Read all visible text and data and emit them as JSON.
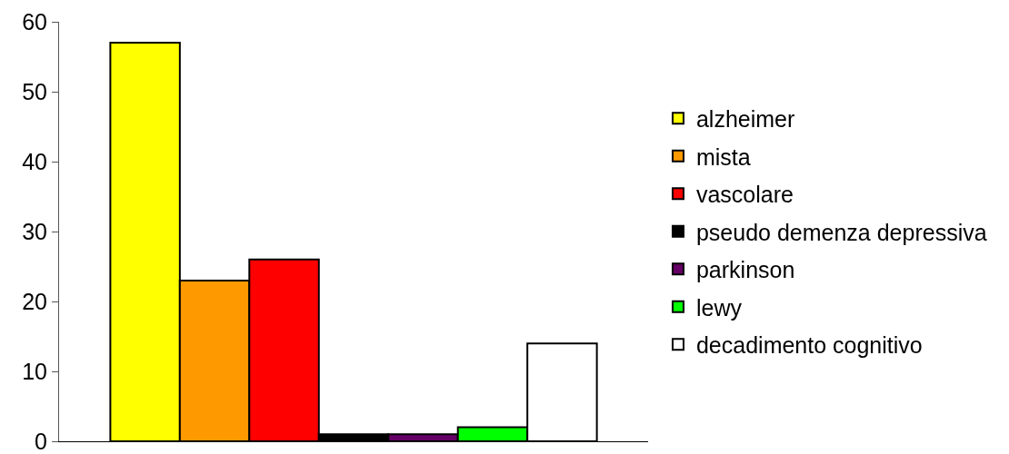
{
  "chart_data": {
    "type": "bar",
    "categories": [
      null
    ],
    "series": [
      {
        "name": "alzheimer",
        "color": "#ffff00",
        "values": [
          57
        ]
      },
      {
        "name": "mista",
        "color": "#ff9900",
        "values": [
          23
        ]
      },
      {
        "name": "vascolare",
        "color": "#ff0000",
        "values": [
          26
        ]
      },
      {
        "name": "pseudo demenza depressiva",
        "color": "#000000",
        "values": [
          1
        ]
      },
      {
        "name": "parkinson",
        "color": "#660066",
        "values": [
          1
        ]
      },
      {
        "name": "lewy",
        "color": "#00ff00",
        "values": [
          2
        ]
      },
      {
        "name": "decadimento cognitivo",
        "color": "#ffffff",
        "values": [
          14
        ]
      }
    ],
    "ylim": [
      0,
      60
    ],
    "yticks": [
      0,
      10,
      20,
      30,
      40,
      50,
      60
    ],
    "legend": "right"
  }
}
